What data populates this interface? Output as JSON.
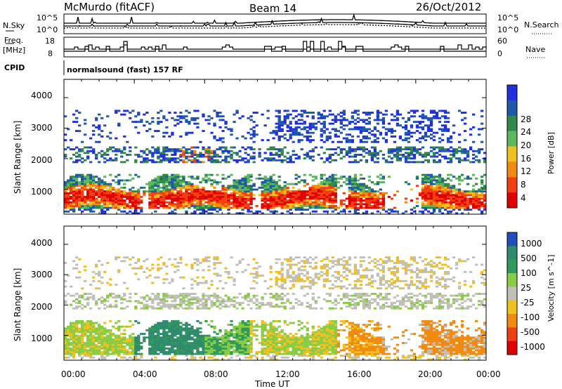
{
  "header": {
    "site": "McMurdo (fitACF)",
    "beam": "Beam 14",
    "date": "26/Oct/2012"
  },
  "left_labels": {
    "nsky": "N.Sky",
    "freq1": "Freq.",
    "freq2": "[MHz]",
    "cpid": "CPID",
    "nsky_top": "10^5",
    "nsky_bottom": "10^0",
    "freq_top": "18",
    "freq_bottom": "8"
  },
  "right_labels": {
    "nsearch": "N.Search",
    "nave": "Nave",
    "nsearch_top": "10^5",
    "nsearch_bottom": "10^0",
    "nave_top": "60",
    "nave_bottom": "0"
  },
  "cpid_text": "normalsound (fast) 157 RF",
  "colors": {
    "power": [
      "#2030e0",
      "#1e5aa8",
      "#2f8a4a",
      "#5cb85c",
      "#f0c020",
      "#f08a10",
      "#f04010",
      "#e00000"
    ],
    "velocity": [
      "#e00000",
      "#f04010",
      "#f08a10",
      "#f0c020",
      "#c0c0b8",
      "#88cc44",
      "#2f9a5a",
      "#2f8a70",
      "#2050c0"
    ]
  },
  "chart_data": [
    {
      "type": "heatmap",
      "name": "Power",
      "xlabel": "",
      "ylabel": "Slant Range [km]",
      "colorbar_label": "Power [dB]",
      "colorbar_ticks": [
        "28",
        "24",
        "20",
        "16",
        "12",
        "8",
        "4"
      ],
      "xlim": [
        "00:00",
        "24:00"
      ],
      "ylim": [
        180,
        4600
      ],
      "yticks": [
        "4000",
        "3000",
        "2000",
        "1000"
      ],
      "grid": false
    },
    {
      "type": "heatmap",
      "name": "Velocity",
      "xlabel": "Time UT",
      "ylabel": "Slant Range [km]",
      "colorbar_label": "Velocity [m s^-1]",
      "colorbar_ticks": [
        "1000",
        "500",
        "100",
        "25",
        "-25",
        "-100",
        "-500",
        "-1000"
      ],
      "xlim": [
        "00:00",
        "24:00"
      ],
      "ylim": [
        180,
        4600
      ],
      "yticks": [
        "4000",
        "3000",
        "2000",
        "1000"
      ],
      "xticks": [
        "00:00",
        "04:00",
        "08:00",
        "12:00",
        "16:00",
        "20:00",
        "00:00"
      ],
      "grid": false
    },
    {
      "type": "line",
      "name": "N.Sky / N.Search",
      "yscale": "log",
      "ylim_labels": [
        "10^0",
        "10^5"
      ]
    },
    {
      "type": "line",
      "name": "Freq / Nave",
      "ylim_left": [
        8,
        18
      ],
      "ylim_right": [
        0,
        60
      ]
    }
  ]
}
